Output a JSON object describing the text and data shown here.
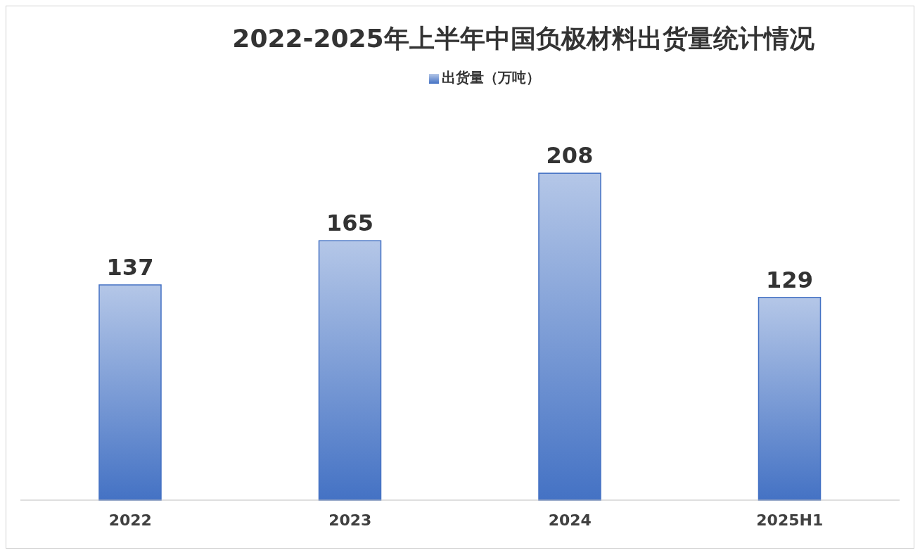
{
  "chart_data": {
    "type": "bar",
    "title": "2022-2025年上半年中国负极材料出货量统计情况",
    "categories": [
      "2022",
      "2023",
      "2024",
      "2025H1"
    ],
    "series": [
      {
        "name": "出货量（万吨）",
        "color": "#4472c4",
        "values": [
          137,
          165,
          208,
          129
        ]
      }
    ],
    "data_labels": true,
    "legend": "top",
    "grid": false
  }
}
